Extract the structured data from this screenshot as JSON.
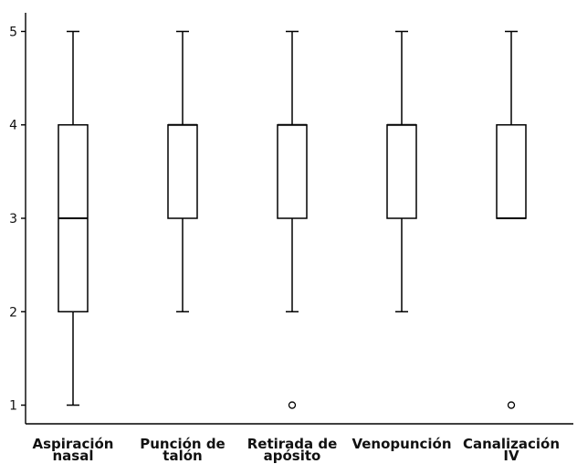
{
  "chart_data": {
    "type": "boxplot",
    "categories": [
      [
        "Aspiración",
        "nasal"
      ],
      [
        "Punción de",
        "talón"
      ],
      [
        "Retirada de",
        "apósito"
      ],
      [
        "Venopunción"
      ],
      [
        "Canalización",
        "IV"
      ]
    ],
    "boxes": [
      {
        "whisker_low": 1,
        "q1": 2,
        "median": 3,
        "q3": 4,
        "whisker_high": 5,
        "outliers": []
      },
      {
        "whisker_low": 2,
        "q1": 3,
        "median": 4,
        "q3": 4,
        "whisker_high": 5,
        "outliers": []
      },
      {
        "whisker_low": 2,
        "q1": 3,
        "median": 4,
        "q3": 4,
        "whisker_high": 5,
        "outliers": [
          1
        ]
      },
      {
        "whisker_low": 2,
        "q1": 3,
        "median": 4,
        "q3": 4,
        "whisker_high": 5,
        "outliers": []
      },
      {
        "whisker_low": 3,
        "q1": 3,
        "median": 3,
        "q3": 4,
        "whisker_high": 5,
        "outliers": [
          1
        ]
      }
    ],
    "y_ticks": [
      1,
      2,
      3,
      4,
      5
    ],
    "ylim": [
      0.8,
      5.2
    ],
    "title": "",
    "xlabel": "",
    "ylabel": "",
    "grid": false,
    "colors": {
      "stroke": "#000000",
      "box_fill": "#ffffff"
    }
  }
}
